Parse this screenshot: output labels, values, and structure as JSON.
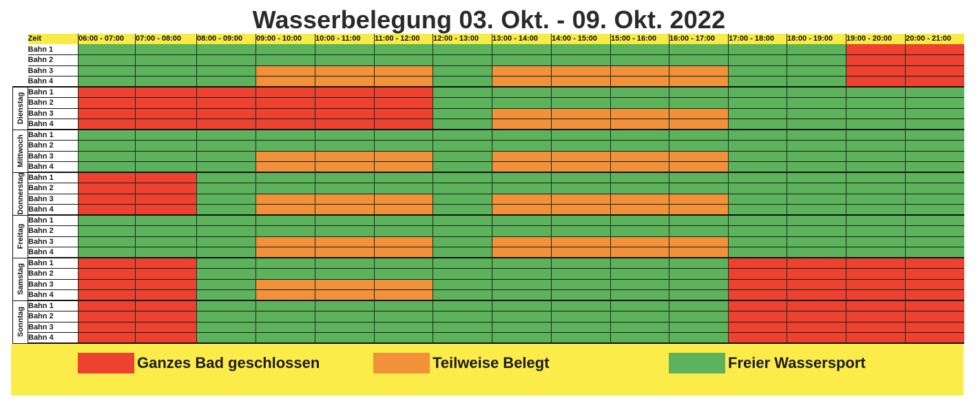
{
  "title": "Wasserbelegung 03. Okt. - 09. Okt. 2022",
  "header": {
    "zeit_label": "Zeit",
    "time_slots": [
      "06:00 - 07:00",
      "07:00 - 08:00",
      "08:00 - 09:00",
      "09:00 - 10:00",
      "10:00 - 11:00",
      "11:00 - 12:00",
      "12:00 - 13:00",
      "13:00 - 14:00",
      "14:00 - 15:00",
      "15:00 - 16:00",
      "16:00 - 17:00",
      "17:00 - 18:00",
      "18:00 - 19:00",
      "19:00 - 20:00",
      "20:00 - 21:00"
    ]
  },
  "status_colors": {
    "R": "#ee4230",
    "O": "#f1923a",
    "G": "#5db35b"
  },
  "days": [
    {
      "name": "",
      "lanes": [
        {
          "label": "Bahn 1",
          "slots": "GGGGGGGGGGGGGRR"
        },
        {
          "label": "Bahn 2",
          "slots": "GGGGGGGGGGGGGRR"
        },
        {
          "label": "Bahn 3",
          "slots": "GGGOOOGOOOOGGRR"
        },
        {
          "label": "Bahn 4",
          "slots": "GGGOOOGOOOOGGRR"
        }
      ]
    },
    {
      "name": "Dienstag",
      "lanes": [
        {
          "label": "Bahn 1",
          "slots": "RRRRRRGGGGGGGGG"
        },
        {
          "label": "Bahn 2",
          "slots": "RRRRRRGGGGGGGGG"
        },
        {
          "label": "Bahn 3",
          "slots": "RRRRRRGOOOOGGGG"
        },
        {
          "label": "Bahn 4",
          "slots": "RRRRRRGOOOOGGGG"
        }
      ]
    },
    {
      "name": "Mittwoch",
      "lanes": [
        {
          "label": "Bahn 1",
          "slots": "GGGGGGGGGGGGGGG"
        },
        {
          "label": "Bahn 2",
          "slots": "GGGGGGGGGGGGGGG"
        },
        {
          "label": "Bahn 3",
          "slots": "GGGOOOGOOOOGGGG"
        },
        {
          "label": "Bahn 4",
          "slots": "GGGOOOGOOOOGGGG"
        }
      ]
    },
    {
      "name": "Donnerstag",
      "lanes": [
        {
          "label": "Bahn 1",
          "slots": "RRGGGGGGGGGGGGG"
        },
        {
          "label": "Bahn 2",
          "slots": "RRGGGGGGGGGGGGG"
        },
        {
          "label": "Bahn 3",
          "slots": "RRGOOOGOOOOGGGG"
        },
        {
          "label": "Bahn 4",
          "slots": "RRGOOOGOOOOGGGG"
        }
      ]
    },
    {
      "name": "Freitag",
      "lanes": [
        {
          "label": "Bahn 1",
          "slots": "GGGGGGGGGGGGGGG"
        },
        {
          "label": "Bahn 2",
          "slots": "GGGGGGGGGGGGGGG"
        },
        {
          "label": "Bahn 3",
          "slots": "GGGOOOGOOOOGGGG"
        },
        {
          "label": "Bahn 4",
          "slots": "GGGOOOGOOOOGGGG"
        }
      ]
    },
    {
      "name": "Samstag",
      "lanes": [
        {
          "label": "Bahn 1",
          "slots": "RRGGGGGGGGGRRRR"
        },
        {
          "label": "Bahn 2",
          "slots": "RRGGGGGGGGGRRRR"
        },
        {
          "label": "Bahn 3",
          "slots": "RRGOOOGGGGGRRRR"
        },
        {
          "label": "Bahn 4",
          "slots": "RRGOOOGGGGGRRRR"
        }
      ]
    },
    {
      "name": "Sonntag",
      "lanes": [
        {
          "label": "Bahn 1",
          "slots": "RRGGGGGGGGGRRRR"
        },
        {
          "label": "Bahn 2",
          "slots": "RRGGGGGGGGGRRRR"
        },
        {
          "label": "Bahn 3",
          "slots": "RRGGGGGGGGGRRRR"
        },
        {
          "label": "Bahn 4",
          "slots": "RRGGGGGGGGGRRRR"
        }
      ]
    }
  ],
  "legend": [
    {
      "key": "R",
      "label": "Ganzes Bad geschlossen",
      "color": "#ee4230"
    },
    {
      "key": "O",
      "label": "Teilweise Belegt",
      "color": "#f1923a"
    },
    {
      "key": "G",
      "label": "Freier Wassersport",
      "color": "#5db35b"
    }
  ]
}
